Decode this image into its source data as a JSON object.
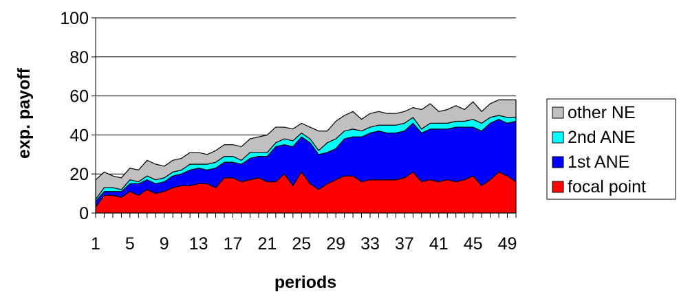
{
  "chart_data": {
    "type": "area",
    "stacked": true,
    "xlabel": "periods",
    "ylabel": "exp. payoff",
    "ylim": [
      0,
      100
    ],
    "yticks": [
      0,
      20,
      40,
      60,
      80,
      100
    ],
    "x": [
      1,
      2,
      3,
      4,
      5,
      6,
      7,
      8,
      9,
      10,
      11,
      12,
      13,
      14,
      15,
      16,
      17,
      18,
      19,
      20,
      21,
      22,
      23,
      24,
      25,
      26,
      27,
      28,
      29,
      30,
      31,
      32,
      33,
      34,
      35,
      36,
      37,
      38,
      39,
      40,
      41,
      42,
      43,
      44,
      45,
      46,
      47,
      48,
      49,
      50
    ],
    "xtick_labels": [
      "1",
      "5",
      "9",
      "13",
      "17",
      "21",
      "25",
      "29",
      "33",
      "37",
      "41",
      "45",
      "49"
    ],
    "grid": true,
    "legend_position": "right",
    "series": [
      {
        "name": "focal point",
        "color": "#ff0000",
        "values": [
          3,
          9,
          9,
          8,
          11,
          9,
          12,
          10,
          11,
          13,
          14,
          14,
          15,
          15,
          13,
          18,
          18,
          16,
          17,
          18,
          16,
          16,
          20,
          14,
          21,
          15,
          12,
          15,
          17,
          19,
          19,
          16,
          17,
          17,
          17,
          17,
          18,
          21,
          16,
          17,
          16,
          17,
          16,
          17,
          19,
          14,
          17,
          21,
          19,
          16
        ]
      },
      {
        "name": "1st ANE",
        "color": "#0000ff",
        "values": [
          3,
          2,
          2,
          3,
          4,
          6,
          5,
          5,
          5,
          6,
          6,
          8,
          8,
          7,
          10,
          8,
          8,
          9,
          11,
          11,
          13,
          18,
          15,
          20,
          18,
          21,
          18,
          16,
          16,
          19,
          20,
          23,
          24,
          25,
          24,
          24,
          24,
          25,
          25,
          26,
          27,
          26,
          28,
          27,
          25,
          28,
          29,
          27,
          27,
          31
        ]
      },
      {
        "name": "2nd ANE",
        "color": "#00ffff",
        "values": [
          1,
          2,
          2,
          1,
          2,
          1,
          2,
          2,
          2,
          2,
          2,
          3,
          2,
          3,
          3,
          3,
          3,
          2,
          3,
          2,
          2,
          2,
          3,
          3,
          2,
          2,
          2,
          5,
          5,
          4,
          4,
          3,
          3,
          3,
          4,
          4,
          4,
          3,
          2,
          3,
          3,
          3,
          3,
          3,
          4,
          4,
          3,
          2,
          3,
          2
        ]
      },
      {
        "name": "other NE",
        "color": "#c0c0c0",
        "values": [
          10,
          8,
          6,
          6,
          6,
          6,
          8,
          8,
          6,
          6,
          6,
          6,
          6,
          5,
          6,
          6,
          6,
          7,
          7,
          8,
          9,
          8,
          6,
          6,
          5,
          6,
          10,
          6,
          9,
          8,
          9,
          6,
          7,
          7,
          6,
          6,
          6,
          5,
          10,
          10,
          6,
          7,
          8,
          6,
          9,
          6,
          7,
          8,
          9,
          9
        ]
      }
    ]
  }
}
